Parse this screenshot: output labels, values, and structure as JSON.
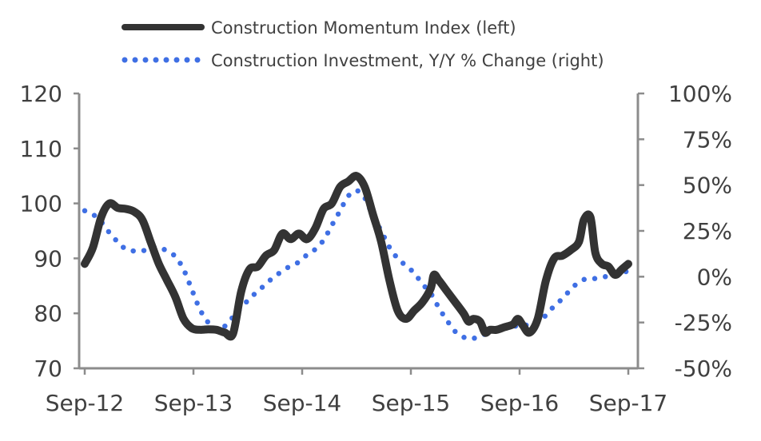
{
  "chart_data": {
    "type": "line",
    "title": "",
    "xlabel": "",
    "ylabel_left": "",
    "ylabel_right": "",
    "x_tick_labels": [
      "Sep-12",
      "Sep-13",
      "Sep-14",
      "Sep-15",
      "Sep-16",
      "Sep-17"
    ],
    "left_axis": {
      "ylim": [
        70,
        120
      ],
      "ticks": [
        70,
        80,
        90,
        100,
        110,
        120
      ]
    },
    "right_axis": {
      "ylim": [
        -50,
        100
      ],
      "ticks": [
        "-50%",
        "-25%",
        "0%",
        "25%",
        "50%",
        "75%",
        "100%"
      ],
      "tick_values": [
        -50,
        -25,
        0,
        25,
        50,
        75,
        100
      ]
    },
    "grid": false,
    "legend_position": "top",
    "series": [
      {
        "name": "Construction Momentum Index (left)",
        "axis": "left",
        "style": "solid",
        "color": "#333333",
        "points": [
          [
            0,
            89
          ],
          [
            0.5,
            92
          ],
          [
            1,
            97.5
          ],
          [
            1.5,
            100
          ],
          [
            2,
            99.2
          ],
          [
            2.5,
            99
          ],
          [
            3,
            98.5
          ],
          [
            3.5,
            97
          ],
          [
            4,
            93
          ],
          [
            4.5,
            89
          ],
          [
            5,
            86
          ],
          [
            5.5,
            83
          ],
          [
            6,
            79
          ],
          [
            6.5,
            77.3
          ],
          [
            7,
            77
          ],
          [
            7.5,
            77.1
          ],
          [
            8,
            77
          ],
          [
            8.5,
            76.5
          ],
          [
            9,
            76.3
          ],
          [
            9.5,
            84
          ],
          [
            10,
            88
          ],
          [
            10.5,
            88.5
          ],
          [
            11,
            90.5
          ],
          [
            11.5,
            91.5
          ],
          [
            12,
            94.5
          ],
          [
            12.5,
            93.5
          ],
          [
            13,
            94.5
          ],
          [
            13.5,
            93.5
          ],
          [
            14,
            95.5
          ],
          [
            14.5,
            99
          ],
          [
            15,
            100
          ],
          [
            15.5,
            103
          ],
          [
            16,
            104
          ],
          [
            16.5,
            105
          ],
          [
            17,
            103
          ],
          [
            17.5,
            98
          ],
          [
            18,
            93
          ],
          [
            18.5,
            86
          ],
          [
            19,
            80.5
          ],
          [
            19.5,
            79
          ],
          [
            20,
            80.5
          ],
          [
            20.5,
            82
          ],
          [
            21,
            84.5
          ],
          [
            21.2,
            87
          ],
          [
            21.5,
            86
          ],
          [
            22,
            84
          ],
          [
            22.5,
            82
          ],
          [
            23,
            80
          ],
          [
            23.3,
            78.5
          ],
          [
            23.6,
            79
          ],
          [
            24,
            78.5
          ],
          [
            24.3,
            76.5
          ],
          [
            24.6,
            77
          ],
          [
            25,
            77
          ],
          [
            25.5,
            77.5
          ],
          [
            26,
            78
          ],
          [
            26.3,
            79
          ],
          [
            26.6,
            77.8
          ],
          [
            27,
            76.5
          ],
          [
            27.5,
            79
          ],
          [
            28,
            86
          ],
          [
            28.5,
            90
          ],
          [
            29,
            90.5
          ],
          [
            29.5,
            91.5
          ],
          [
            30,
            93
          ],
          [
            30.3,
            97
          ],
          [
            30.7,
            97.5
          ],
          [
            31,
            91
          ],
          [
            31.4,
            89
          ],
          [
            31.8,
            88.5
          ],
          [
            32.2,
            87
          ],
          [
            32.6,
            88
          ],
          [
            33,
            89
          ]
        ]
      },
      {
        "name": "Construction Investment, Y/Y % Change (right)",
        "axis": "right",
        "style": "dotted",
        "color": "#3f6fe4",
        "points": [
          [
            0,
            36
          ],
          [
            0.5,
            34
          ],
          [
            1,
            30
          ],
          [
            1.5,
            24
          ],
          [
            2,
            19
          ],
          [
            2.5,
            15
          ],
          [
            3,
            14
          ],
          [
            3.5,
            14
          ],
          [
            4,
            16
          ],
          [
            4.5,
            16
          ],
          [
            5,
            14
          ],
          [
            5.5,
            11
          ],
          [
            6,
            4
          ],
          [
            6.5,
            -7
          ],
          [
            7,
            -18
          ],
          [
            7.5,
            -25
          ],
          [
            8,
            -29
          ],
          [
            8.5,
            -27
          ],
          [
            9,
            -22
          ],
          [
            9.5,
            -17
          ],
          [
            10,
            -12
          ],
          [
            10.5,
            -8
          ],
          [
            11,
            -4
          ],
          [
            11.5,
            0
          ],
          [
            12,
            3
          ],
          [
            12.5,
            6
          ],
          [
            13,
            8
          ],
          [
            13.5,
            12
          ],
          [
            14,
            15
          ],
          [
            14.5,
            20
          ],
          [
            15,
            28
          ],
          [
            15.5,
            36
          ],
          [
            16,
            44
          ],
          [
            16.5,
            47
          ],
          [
            17,
            43
          ],
          [
            17.5,
            33
          ],
          [
            18,
            25
          ],
          [
            18.5,
            16
          ],
          [
            19,
            10
          ],
          [
            19.5,
            6
          ],
          [
            20,
            2
          ],
          [
            20.5,
            -4
          ],
          [
            21,
            -9
          ],
          [
            21.5,
            -17
          ],
          [
            22,
            -24
          ],
          [
            22.5,
            -30
          ],
          [
            23,
            -33
          ],
          [
            23.5,
            -34
          ],
          [
            24,
            -32
          ],
          [
            24.5,
            -31
          ],
          [
            25,
            -29
          ],
          [
            25.5,
            -28
          ],
          [
            26,
            -27
          ],
          [
            26.5,
            -27
          ],
          [
            27,
            -26
          ],
          [
            27.5,
            -25
          ],
          [
            28,
            -21
          ],
          [
            28.5,
            -16
          ],
          [
            29,
            -12
          ],
          [
            29.5,
            -7
          ],
          [
            30,
            -3
          ],
          [
            30.5,
            -1
          ],
          [
            31,
            -1
          ],
          [
            31.5,
            0
          ],
          [
            32,
            0
          ],
          [
            32.5,
            2
          ],
          [
            33,
            3
          ]
        ]
      }
    ]
  }
}
